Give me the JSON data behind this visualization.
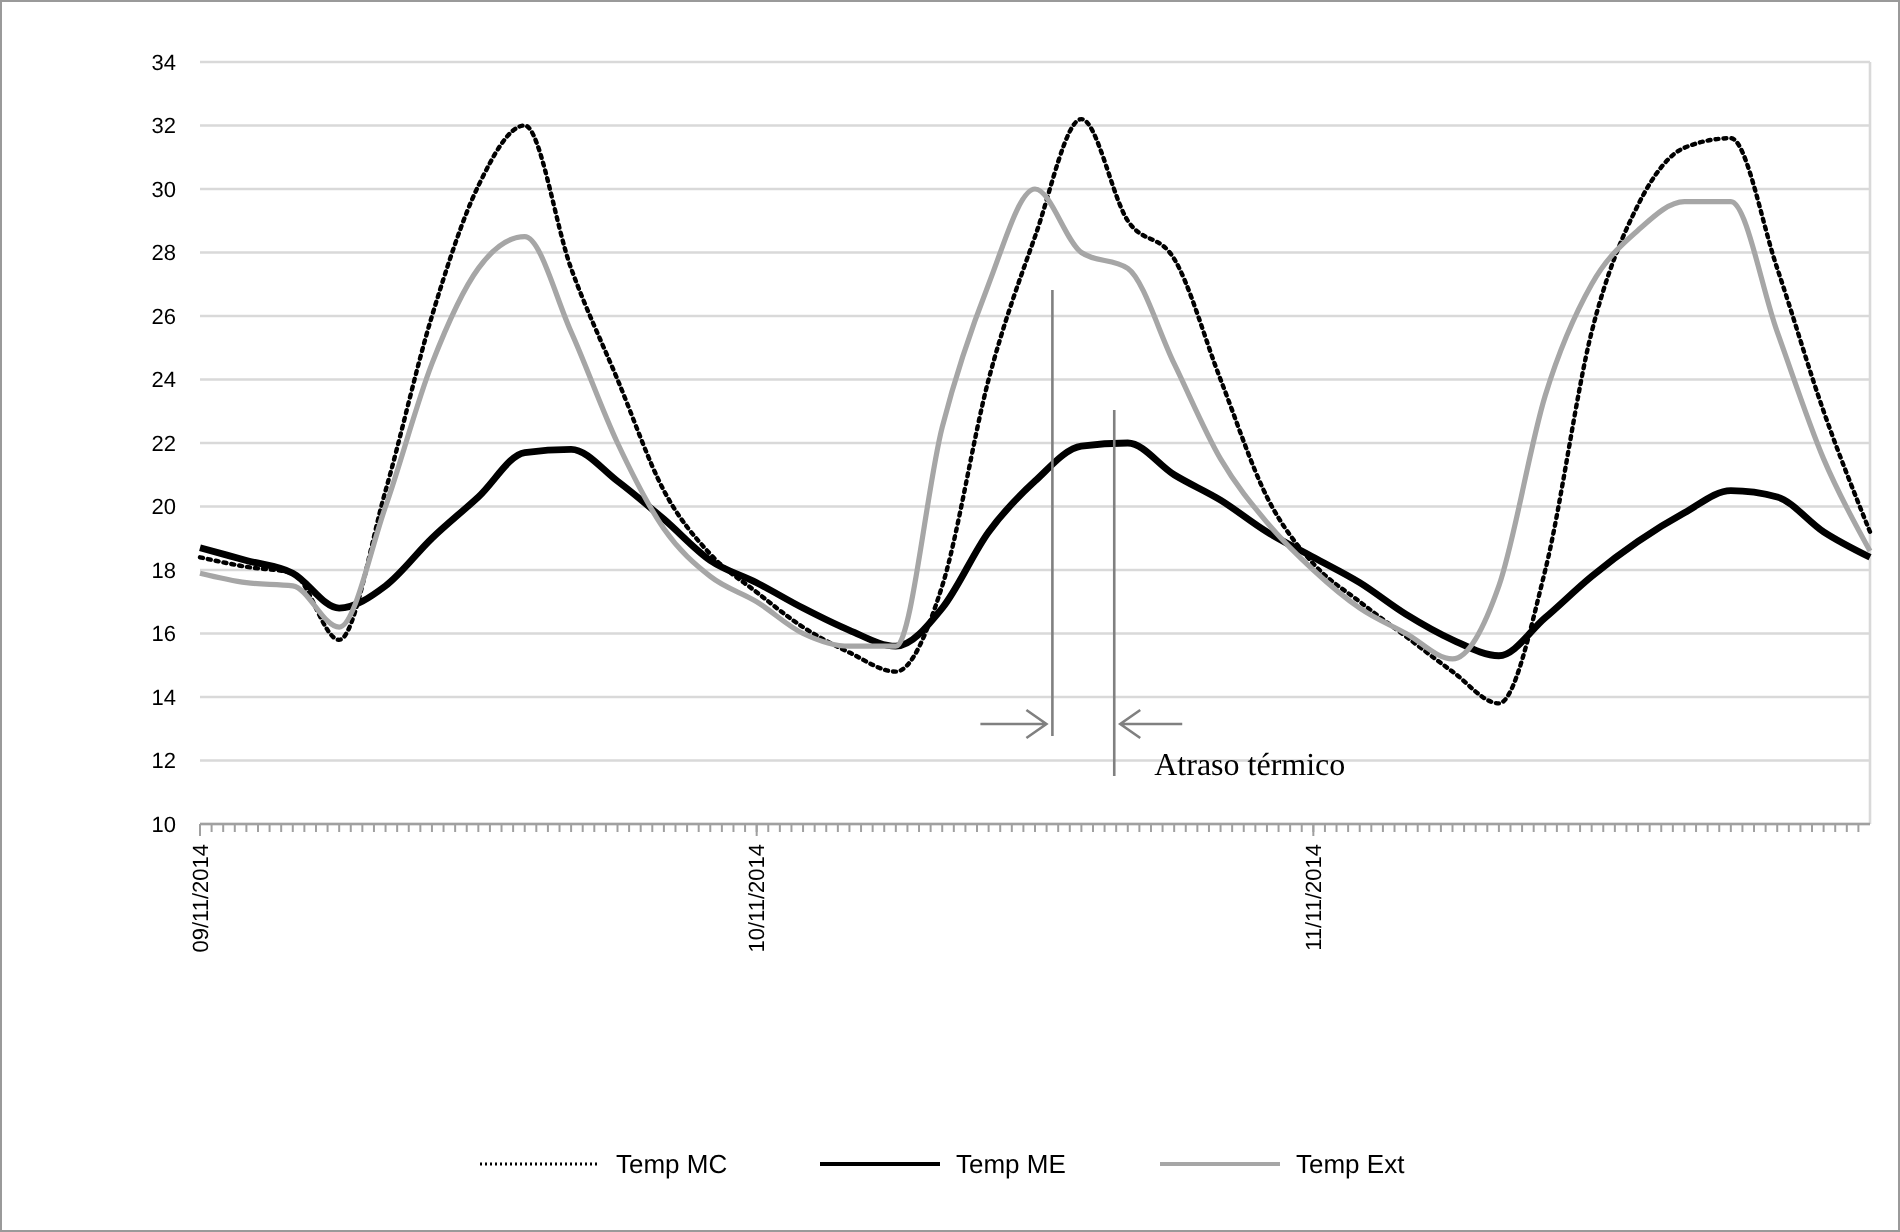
{
  "chart_data": {
    "type": "line",
    "x": [
      "2014-11-09T00:00",
      "2014-11-09T02:00",
      "2014-11-09T04:00",
      "2014-11-09T06:00",
      "2014-11-09T08:00",
      "2014-11-09T10:00",
      "2014-11-09T12:00",
      "2014-11-09T14:00",
      "2014-11-09T16:00",
      "2014-11-09T18:00",
      "2014-11-09T20:00",
      "2014-11-09T22:00",
      "2014-11-10T00:00",
      "2014-11-10T02:00",
      "2014-11-10T04:00",
      "2014-11-10T06:00",
      "2014-11-10T08:00",
      "2014-11-10T10:00",
      "2014-11-10T12:00",
      "2014-11-10T14:00",
      "2014-11-10T16:00",
      "2014-11-10T18:00",
      "2014-11-10T20:00",
      "2014-11-10T22:00",
      "2014-11-11T00:00",
      "2014-11-11T02:00",
      "2014-11-11T04:00",
      "2014-11-11T06:00",
      "2014-11-11T08:00",
      "2014-11-11T10:00",
      "2014-11-11T12:00",
      "2014-11-11T14:00",
      "2014-11-11T16:00",
      "2014-11-11T18:00",
      "2014-11-11T20:00",
      "2014-11-11T22:00",
      "2014-11-12T00:00"
    ],
    "series": [
      {
        "name": "Temp MC",
        "color": "#000000",
        "line_style": "dotted",
        "values": [
          18.4,
          18.1,
          17.9,
          15.8,
          20.5,
          26,
          30.1,
          32,
          27.5,
          24,
          20.5,
          18.5,
          17.3,
          16.2,
          15.4,
          14.8,
          17.5,
          24,
          28.5,
          32.2,
          29,
          27.8,
          24,
          20.3,
          18.2,
          17,
          15.9,
          14.8,
          13.8,
          18,
          25.5,
          29.5,
          31.3,
          31.6,
          27.5,
          23,
          19.2
        ]
      },
      {
        "name": "Temp ME",
        "color": "#000000",
        "line_style": "solid",
        "values": [
          18.7,
          18.3,
          17.9,
          16.8,
          17.5,
          19,
          20.3,
          21.7,
          21.8,
          20.8,
          19.6,
          18.3,
          17.6,
          16.8,
          16.1,
          15.6,
          16.8,
          19.2,
          20.8,
          21.9,
          22,
          21,
          20.2,
          19.2,
          18.4,
          17.6,
          16.6,
          15.8,
          15.3,
          16.5,
          17.8,
          18.9,
          19.8,
          20.5,
          20.3,
          19.2,
          18.4
        ]
      },
      {
        "name": "Temp Ext",
        "color": "#a6a6a6",
        "line_style": "solid",
        "values": [
          17.9,
          17.6,
          17.5,
          16.2,
          20,
          24.5,
          27.5,
          28.5,
          25.5,
          22,
          19.3,
          17.8,
          17,
          16,
          15.6,
          15.6,
          22.5,
          27,
          30,
          28,
          27.5,
          24.5,
          21.5,
          19.5,
          18,
          16.8,
          16,
          15.2,
          17.5,
          23.5,
          27,
          28.7,
          29.6,
          29.6,
          25.5,
          21.5,
          18.6
        ]
      }
    ],
    "xlim": [
      "2014-11-09T00:00",
      "2014-11-12T00:00"
    ],
    "xticks": [
      {
        "value": "2014-11-09T00:00",
        "label": "09/11/2014"
      },
      {
        "value": "2014-11-10T00:00",
        "label": "10/11/2014"
      },
      {
        "value": "2014-11-11T00:00",
        "label": "11/11/2014"
      }
    ],
    "ylim": [
      10,
      34
    ],
    "yticks": [
      10,
      12,
      14,
      16,
      18,
      20,
      22,
      24,
      26,
      28,
      30,
      32,
      34
    ],
    "grid": "y",
    "legend": "bottom",
    "marker": "none",
    "ref_lines": [
      {
        "axis": "x",
        "value": "2014-11-10T12:45",
        "color": "#808080"
      },
      {
        "axis": "x",
        "value": "2014-11-10T15:25",
        "color": "#808080"
      }
    ],
    "annotations": [
      "Atraso térmico"
    ]
  }
}
